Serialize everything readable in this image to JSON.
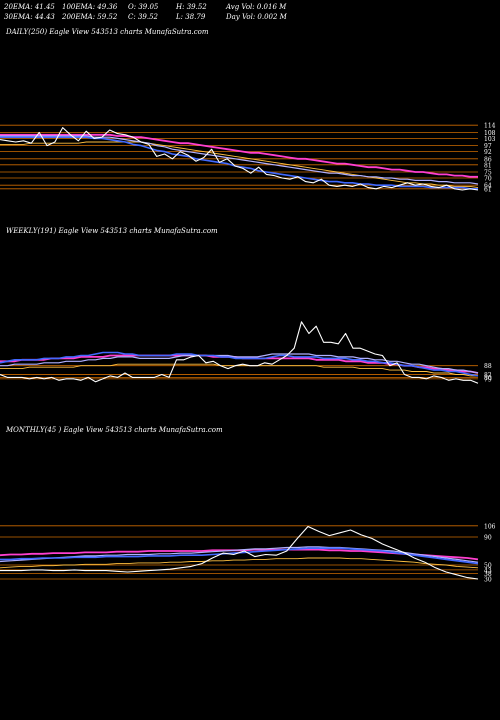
{
  "header": {
    "row1": [
      "20EMA: 41.45",
      "100EMA: 49.36",
      "O: 39.05",
      "H: 39.52",
      "Avg Vol: 0.016  M"
    ],
    "row2": [
      "30EMA: 44.43",
      "200EMA: 59.52",
      "C: 39.52",
      "L: 38.79",
      "Day Vol: 0.002  M"
    ]
  },
  "panels": [
    {
      "label": "DAILY(250) Eagle  View  543513 charts MunafaSutra.com"
    },
    {
      "label": "WEEKLY(191) Eagle  View  543513 charts MunafaSutra.com"
    },
    {
      "label": "MONTHLY(45                 ) Eagle  View  543513 charts MunafaSutra.com"
    }
  ],
  "colors": {
    "price": "#ffffff",
    "ema_fast": "#4169ff",
    "ema_mid": "#b0b0ff",
    "ema_slow": "#ff3fcf",
    "ema_long": "#ffc040",
    "level": "#cc6a00",
    "bg": "#000000"
  },
  "chart_data": [
    {
      "type": "line",
      "name": "daily",
      "price": [
        102,
        101,
        100,
        101,
        99,
        108,
        97,
        100,
        112,
        106,
        101,
        109,
        103,
        104,
        110,
        107,
        106,
        104,
        100,
        98,
        88,
        90,
        86,
        92,
        89,
        84,
        87,
        94,
        83,
        86,
        80,
        78,
        74,
        79,
        73,
        72,
        70,
        69,
        71,
        67,
        66,
        69,
        64,
        63,
        64,
        63,
        65,
        62,
        61,
        63,
        62,
        64,
        66,
        64,
        65,
        63,
        62,
        64,
        61,
        60,
        61,
        60
      ],
      "ema_fast": [
        104,
        104,
        104,
        104,
        104,
        104,
        104,
        104,
        104,
        104,
        104,
        104,
        103,
        103,
        102,
        101,
        100,
        98,
        97,
        95,
        93,
        92,
        90,
        89,
        88,
        86,
        85,
        84,
        83,
        82,
        80,
        79,
        78,
        76,
        75,
        74,
        73,
        72,
        71,
        70,
        69,
        68,
        67,
        67,
        66,
        66,
        65,
        65,
        64,
        64,
        64,
        63,
        63,
        63,
        63,
        62,
        62,
        62,
        62,
        62,
        61,
        61
      ],
      "ema_mid": [
        105,
        105,
        105,
        105,
        105,
        105,
        105,
        105,
        105,
        105,
        105,
        105,
        104,
        104,
        104,
        103,
        102,
        101,
        100,
        99,
        97,
        96,
        94,
        93,
        92,
        91,
        90,
        89,
        88,
        87,
        86,
        85,
        84,
        83,
        82,
        81,
        80,
        79,
        78,
        77,
        76,
        75,
        74,
        74,
        73,
        72,
        72,
        71,
        71,
        70,
        70,
        69,
        69,
        68,
        68,
        68,
        67,
        67,
        66,
        66,
        66,
        65
      ],
      "ema_slow": [
        106,
        106,
        106,
        106,
        106,
        106,
        106,
        106,
        106,
        106,
        106,
        106,
        106,
        106,
        106,
        105,
        105,
        104,
        104,
        103,
        102,
        101,
        100,
        99,
        99,
        98,
        97,
        96,
        95,
        94,
        93,
        92,
        91,
        91,
        90,
        89,
        88,
        87,
        86,
        86,
        85,
        84,
        83,
        82,
        82,
        81,
        80,
        79,
        79,
        78,
        77,
        77,
        76,
        75,
        75,
        74,
        73,
        73,
        72,
        72,
        71,
        71
      ],
      "ema_long": [
        98,
        98,
        98,
        98,
        99,
        99,
        99,
        99,
        99,
        99,
        99,
        100,
        100,
        100,
        100,
        100,
        100,
        100,
        100,
        99,
        98,
        97,
        96,
        95,
        94,
        93,
        92,
        91,
        90,
        89,
        88,
        87,
        86,
        85,
        84,
        83,
        82,
        81,
        80,
        79,
        78,
        77,
        76,
        75,
        74,
        73,
        72,
        71,
        70,
        69,
        68,
        67,
        66,
        66,
        65,
        65,
        64,
        64,
        63,
        63,
        63,
        62
      ],
      "levels": [
        114,
        108,
        103,
        97,
        92,
        86,
        81,
        75,
        70,
        64,
        61
      ],
      "ylim": [
        55,
        120
      ]
    },
    {
      "type": "line",
      "name": "weekly",
      "price": [
        82,
        80,
        80,
        80,
        79,
        80,
        79,
        80,
        78,
        79,
        79,
        78,
        80,
        77,
        79,
        81,
        80,
        83,
        80,
        80,
        80,
        80,
        82,
        80,
        92,
        92,
        94,
        95,
        90,
        91,
        88,
        86,
        88,
        89,
        88,
        88,
        90,
        89,
        92,
        95,
        100,
        118,
        110,
        115,
        104,
        104,
        103,
        110,
        100,
        100,
        98,
        96,
        95,
        88,
        90,
        82,
        80,
        80,
        79,
        81,
        80,
        78,
        79,
        78,
        78,
        76
      ],
      "ema_fast": [
        90,
        91,
        92,
        92,
        92,
        92,
        93,
        93,
        93,
        94,
        94,
        95,
        95,
        96,
        97,
        97,
        97,
        96,
        96,
        95,
        95,
        95,
        95,
        95,
        96,
        96,
        96,
        95,
        95,
        95,
        94,
        94,
        93,
        93,
        93,
        93,
        93,
        94,
        95,
        95,
        94,
        94,
        94,
        94,
        93,
        93,
        93,
        93,
        92,
        92,
        91,
        91,
        90,
        90,
        89,
        88,
        88,
        87,
        86,
        85,
        85,
        84,
        84,
        83,
        82,
        81
      ],
      "ema_mid": [
        88,
        88,
        89,
        89,
        89,
        89,
        90,
        90,
        90,
        91,
        91,
        91,
        92,
        92,
        93,
        93,
        94,
        94,
        94,
        93,
        93,
        93,
        93,
        93,
        94,
        95,
        95,
        95,
        95,
        95,
        95,
        95,
        94,
        94,
        94,
        94,
        95,
        96,
        96,
        96,
        96,
        96,
        96,
        95,
        95,
        95,
        94,
        94,
        94,
        93,
        93,
        92,
        92,
        91,
        91,
        90,
        89,
        89,
        88,
        87,
        86,
        86,
        85,
        85,
        84,
        83
      ],
      "ema_slow": [
        91,
        91,
        91,
        92,
        92,
        92,
        92,
        93,
        93,
        93,
        93,
        94,
        94,
        94,
        94,
        95,
        95,
        95,
        95,
        95,
        95,
        95,
        95,
        95,
        95,
        95,
        95,
        95,
        95,
        94,
        94,
        94,
        94,
        93,
        93,
        93,
        93,
        93,
        93,
        93,
        93,
        93,
        93,
        92,
        92,
        92,
        92,
        91,
        91,
        91,
        90,
        90,
        90,
        89,
        89,
        88,
        88,
        87,
        87,
        86,
        86,
        85,
        85,
        84,
        84,
        83
      ],
      "ema_long": [
        86,
        86,
        86,
        86,
        87,
        87,
        87,
        87,
        87,
        87,
        87,
        88,
        88,
        88,
        88,
        88,
        89,
        89,
        89,
        89,
        89,
        89,
        89,
        89,
        89,
        89,
        89,
        89,
        89,
        89,
        88,
        88,
        88,
        88,
        88,
        88,
        88,
        88,
        88,
        88,
        88,
        88,
        88,
        88,
        87,
        87,
        87,
        87,
        87,
        86,
        86,
        86,
        86,
        85,
        85,
        85,
        84,
        84,
        84,
        83,
        83,
        83,
        82,
        82,
        81,
        81
      ],
      "levels": [
        88,
        82,
        80,
        79
      ],
      "ylim": [
        70,
        122
      ]
    },
    {
      "type": "line",
      "name": "monthly",
      "price": [
        42,
        42,
        42,
        43,
        43,
        42,
        42,
        43,
        42,
        42,
        42,
        41,
        40,
        41,
        42,
        43,
        44,
        46,
        48,
        52,
        60,
        67,
        65,
        70,
        62,
        65,
        64,
        70,
        88,
        105,
        98,
        92,
        96,
        100,
        93,
        88,
        80,
        74,
        68,
        60,
        54,
        46,
        40,
        36,
        32,
        30
      ],
      "ema_fast": [
        58,
        58,
        59,
        59,
        60,
        60,
        60,
        61,
        61,
        61,
        62,
        62,
        62,
        62,
        63,
        63,
        63,
        64,
        64,
        64,
        65,
        66,
        67,
        68,
        69,
        70,
        71,
        72,
        73,
        74,
        74,
        74,
        74,
        73,
        72,
        71,
        70,
        68,
        66,
        64,
        62,
        60,
        58,
        56,
        54,
        52
      ],
      "ema_mid": [
        55,
        56,
        57,
        58,
        59,
        60,
        61,
        62,
        63,
        63,
        64,
        64,
        65,
        65,
        65,
        66,
        66,
        67,
        67,
        68,
        69,
        70,
        71,
        72,
        73,
        73,
        74,
        75,
        75,
        76,
        76,
        75,
        75,
        74,
        73,
        72,
        71,
        70,
        68,
        66,
        64,
        62,
        60,
        58,
        56,
        54
      ],
      "ema_slow": [
        64,
        65,
        65,
        66,
        66,
        67,
        67,
        67,
        68,
        68,
        68,
        69,
        69,
        69,
        70,
        70,
        70,
        70,
        70,
        70,
        71,
        71,
        71,
        71,
        72,
        72,
        72,
        72,
        72,
        72,
        72,
        71,
        71,
        70,
        70,
        69,
        68,
        67,
        66,
        65,
        64,
        63,
        62,
        61,
        60,
        58
      ],
      "ema_long": [
        46,
        47,
        48,
        48,
        49,
        49,
        50,
        50,
        51,
        51,
        51,
        52,
        52,
        53,
        53,
        53,
        54,
        54,
        55,
        55,
        56,
        56,
        57,
        57,
        58,
        58,
        59,
        59,
        59,
        60,
        60,
        60,
        60,
        59,
        59,
        58,
        57,
        56,
        55,
        54,
        52,
        51,
        50,
        48,
        47,
        46
      ],
      "levels": [
        106,
        90,
        50,
        43,
        38,
        30
      ],
      "ylim": [
        20,
        120
      ]
    }
  ]
}
